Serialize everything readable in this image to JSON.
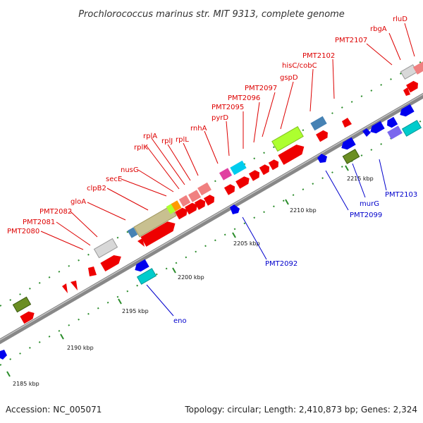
{
  "title": "Prochlorococcus marinus str. MIT 9313, complete genome",
  "accession": "Accession: NC_005071",
  "topology": "Topology: circular; Length: 2,410,873 bp; Genes: 2,324",
  "ticks": [
    {
      "label": "2185 kbp"
    },
    {
      "label": "2190 kbp"
    },
    {
      "label": "2195 kbp"
    },
    {
      "label": "2200 kbp"
    },
    {
      "label": "2205 kbp"
    },
    {
      "label": "2210 kbp"
    },
    {
      "label": "2215 kbp"
    }
  ],
  "gene_labels_red": [
    "PMT2080",
    "PMT2081",
    "PMT2082",
    "gloA",
    "clpB2",
    "secE",
    "nusG",
    "rplK",
    "rplA",
    "rplJ",
    "rplL",
    "rnhA",
    "pyrD",
    "PMT2095",
    "PMT2096",
    "PMT2097",
    "gspD",
    "hisC/cobC",
    "PMT2102",
    "PMT2107",
    "rbgA",
    "rluD"
  ],
  "gene_labels_blue": [
    "eno",
    "PMT2092",
    "PMT2099",
    "murG",
    "PMT2103"
  ],
  "colors": {
    "backbone": "#888888",
    "dots": "#2a8c2a",
    "forward_gene": "#ee0000",
    "reverse_gene": "#0000ee",
    "red_label": "#dd0000",
    "blue_label": "#0000cc"
  }
}
